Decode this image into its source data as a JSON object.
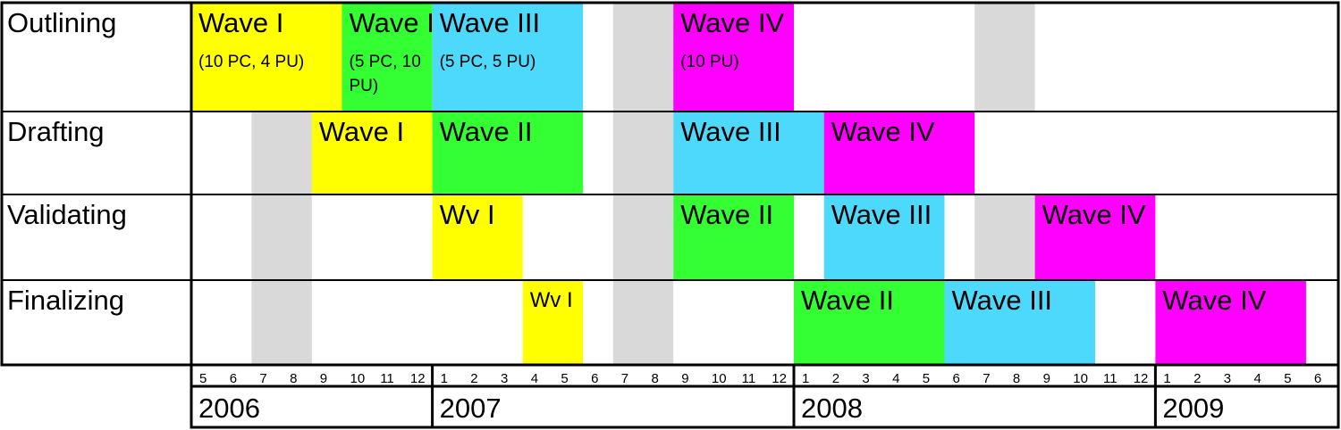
{
  "chart_data": {
    "type": "gantt",
    "rows": [
      "Outlining",
      "Drafting",
      "Validating",
      "Finalizing"
    ],
    "years": [
      {
        "label": "2006",
        "start": "2006-05"
      },
      {
        "label": "2007",
        "start": "2007-01"
      },
      {
        "label": "2008",
        "start": "2008-01"
      },
      {
        "label": "2009",
        "start": "2009-01"
      }
    ],
    "months": [
      "5",
      "6",
      "7",
      "8",
      "9",
      "10",
      "11",
      "12",
      "1",
      "2",
      "3",
      "4",
      "5",
      "6",
      "7",
      "8",
      "9",
      "10",
      "11",
      "12",
      "1",
      "2",
      "3",
      "4",
      "5",
      "6",
      "7",
      "8",
      "9",
      "10",
      "11",
      "12",
      "1",
      "2",
      "3",
      "4",
      "5",
      "6"
    ],
    "timeline_start": "2006-05",
    "timeline_end": "2009-06",
    "shaded_periods": [
      {
        "rows": [
          1,
          2,
          3
        ],
        "start": "2006-07",
        "end": "2006-08"
      },
      {
        "rows": [
          0,
          1,
          2,
          3
        ],
        "start": "2007-07",
        "end": "2007-08"
      },
      {
        "rows": [
          0,
          2
        ],
        "start": "2008-07",
        "end": "2008-08"
      }
    ],
    "colors": {
      "Wave I": "#ffff00",
      "Wave II": "#33ff33",
      "Wave III": "#4dd9fb",
      "Wave IV": "#ff00ff",
      "shade": "#d9d9d9"
    },
    "bars": [
      {
        "row": 0,
        "wave": "Wave I",
        "label": "Wave I",
        "sublabel": [
          "(10 PC,  4 PU)"
        ],
        "start": "2006-05",
        "end": "2006-09"
      },
      {
        "row": 0,
        "wave": "Wave II",
        "label": "Wave II",
        "sublabel": [
          "(5 PC, 10",
          "PU)"
        ],
        "start": "2006-10",
        "end": "2006-12"
      },
      {
        "row": 0,
        "wave": "Wave III",
        "label": "Wave III",
        "sublabel": [
          "(5 PC, 5 PU)"
        ],
        "start": "2007-01",
        "end": "2007-05"
      },
      {
        "row": 0,
        "wave": "Wave IV",
        "label": "Wave IV",
        "sublabel": [
          "(10 PU)"
        ],
        "start": "2007-09",
        "end": "2007-12"
      },
      {
        "row": 1,
        "wave": "Wave I",
        "label": "Wave I",
        "sublabel": [],
        "start": "2006-09",
        "end": "2006-12"
      },
      {
        "row": 1,
        "wave": "Wave II",
        "label": "Wave II",
        "sublabel": [],
        "start": "2007-01",
        "end": "2007-05"
      },
      {
        "row": 1,
        "wave": "Wave III",
        "label": "Wave III",
        "sublabel": [],
        "start": "2007-09",
        "end": "2008-01"
      },
      {
        "row": 1,
        "wave": "Wave IV",
        "label": "Wave IV",
        "sublabel": [],
        "start": "2008-02",
        "end": "2008-06"
      },
      {
        "row": 2,
        "wave": "Wave I",
        "label": "Wv I",
        "sublabel": [],
        "start": "2007-01",
        "end": "2007-03"
      },
      {
        "row": 2,
        "wave": "Wave II",
        "label": "Wave II",
        "sublabel": [],
        "start": "2007-09",
        "end": "2007-12"
      },
      {
        "row": 2,
        "wave": "Wave III",
        "label": "Wave III",
        "sublabel": [],
        "start": "2008-02",
        "end": "2008-05"
      },
      {
        "row": 2,
        "wave": "Wave IV",
        "label": "Wave IV",
        "sublabel": [],
        "start": "2008-09",
        "end": "2008-12"
      },
      {
        "row": 3,
        "wave": "Wave I",
        "label": "Wv I",
        "sublabel": [],
        "start": "2007-04",
        "end": "2007-05"
      },
      {
        "row": 3,
        "wave": "Wave II",
        "label": "Wave II",
        "sublabel": [],
        "start": "2008-01",
        "end": "2008-05"
      },
      {
        "row": 3,
        "wave": "Wave III",
        "label": "Wave III",
        "sublabel": [],
        "start": "2008-06",
        "end": "2008-10"
      },
      {
        "row": 3,
        "wave": "Wave IV",
        "label": "Wave IV",
        "sublabel": [],
        "start": "2009-01",
        "end": "2009-05"
      }
    ]
  }
}
